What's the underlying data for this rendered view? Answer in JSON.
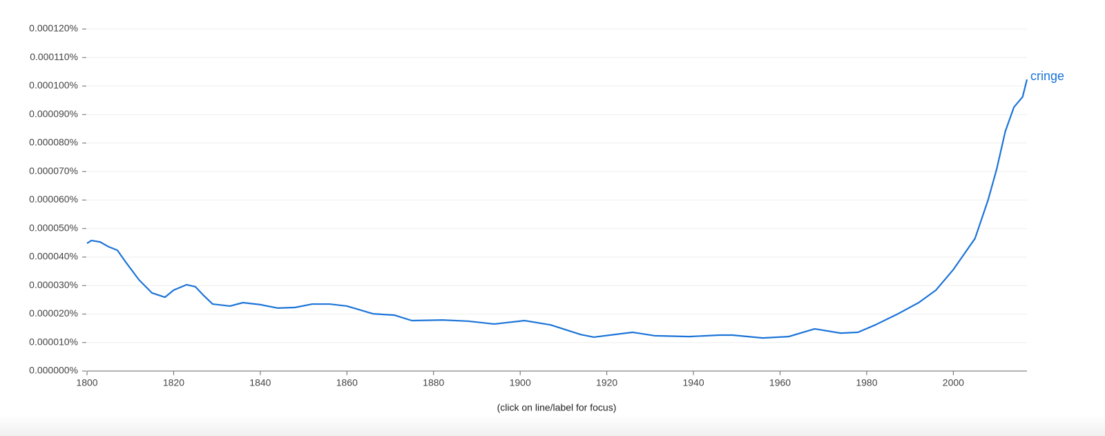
{
  "chart_data": {
    "type": "line",
    "footer": "(click on line/label for focus)",
    "x": [
      1800,
      1801,
      1803,
      1805,
      1807,
      1809,
      1812,
      1815,
      1818,
      1820,
      1823,
      1825,
      1827,
      1829,
      1833,
      1836,
      1840,
      1844,
      1848,
      1852,
      1856,
      1860,
      1866,
      1871,
      1875,
      1882,
      1888,
      1894,
      1901,
      1907,
      1914,
      1917,
      1926,
      1931,
      1939,
      1946,
      1949,
      1956,
      1962,
      1968,
      1974,
      1978,
      1982,
      1987,
      1992,
      1996,
      2000,
      2005,
      2008,
      2010,
      2012,
      2014,
      2016,
      2017
    ],
    "series": [
      {
        "name": "cringe",
        "color": "#1a73d8",
        "values": [
          4.48e-05,
          4.58e-05,
          4.53e-05,
          4.36e-05,
          4.24e-05,
          3.81e-05,
          3.2e-05,
          2.74e-05,
          2.59e-05,
          2.84e-05,
          3.03e-05,
          2.96e-05,
          2.64e-05,
          2.35e-05,
          2.28e-05,
          2.4e-05,
          2.33e-05,
          2.21e-05,
          2.23e-05,
          2.35e-05,
          2.35e-05,
          2.28e-05,
          2.01e-05,
          1.96e-05,
          1.77e-05,
          1.79e-05,
          1.75e-05,
          1.65e-05,
          1.77e-05,
          1.62e-05,
          1.28e-05,
          1.19e-05,
          1.36e-05,
          1.24e-05,
          1.21e-05,
          1.26e-05,
          1.26e-05,
          1.16e-05,
          1.21e-05,
          1.48e-05,
          1.33e-05,
          1.36e-05,
          1.62e-05,
          1.99e-05,
          2.4e-05,
          2.84e-05,
          3.56e-05,
          4.65e-05,
          5.99e-05,
          7.08e-05,
          8.41e-05,
          9.26e-05,
          9.62e-05,
          0.0001023
        ]
      }
    ],
    "xlim": [
      1800,
      2017
    ],
    "xticks": [
      1800,
      1820,
      1840,
      1860,
      1880,
      1900,
      1920,
      1940,
      1960,
      1980,
      2000
    ],
    "ylim": [
      0,
      0.00012
    ],
    "yticks": [
      {
        "value": 0,
        "label": "0.000000%"
      },
      {
        "value": 1e-05,
        "label": "0.000010%"
      },
      {
        "value": 2e-05,
        "label": "0.000020%"
      },
      {
        "value": 3e-05,
        "label": "0.000030%"
      },
      {
        "value": 4e-05,
        "label": "0.000040%"
      },
      {
        "value": 5e-05,
        "label": "0.000050%"
      },
      {
        "value": 6e-05,
        "label": "0.000060%"
      },
      {
        "value": 7e-05,
        "label": "0.000070%"
      },
      {
        "value": 8e-05,
        "label": "0.000080%"
      },
      {
        "value": 9e-05,
        "label": "0.000090%"
      },
      {
        "value": 0.0001,
        "label": "0.000100%"
      },
      {
        "value": 0.00011,
        "label": "0.000110%"
      },
      {
        "value": 0.00012,
        "label": "0.000120%"
      }
    ],
    "grid": true
  }
}
